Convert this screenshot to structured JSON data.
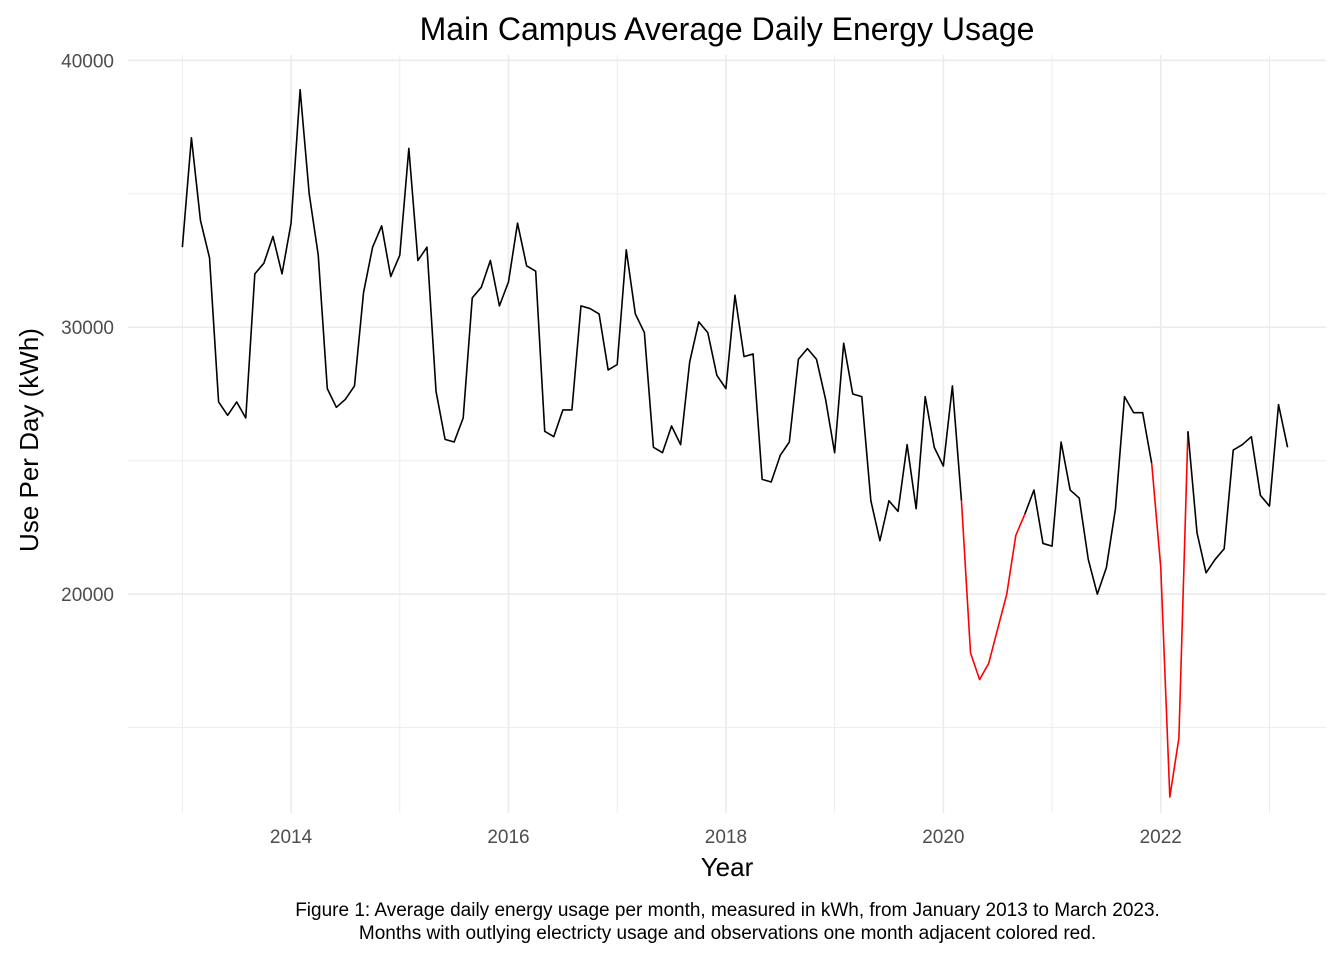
{
  "chart_data": {
    "type": "line",
    "title": "Main Campus Average Daily Energy Usage",
    "xlabel": "Year",
    "ylabel": "Use Per Day (kWh)",
    "xlim": [
      2012.5,
      2023.52
    ],
    "ylim": [
      11800,
      40200
    ],
    "x_ticks": [
      2014,
      2016,
      2018,
      2020,
      2022
    ],
    "y_ticks": [
      20000,
      30000,
      40000
    ],
    "grid": true,
    "legend": "none",
    "colors": {
      "normal": "#000000",
      "outlier": "#ff0000",
      "grid": "#ebebeb"
    },
    "x_start": "2013-01",
    "x_end": "2023-03",
    "series": [
      {
        "values": [
          33000,
          37100,
          34000,
          32600,
          27200,
          26700,
          27200,
          26600,
          32000,
          32400,
          33400,
          32000,
          33900,
          38900,
          35000,
          32700,
          27700,
          27000,
          27300,
          27800,
          31300,
          33000,
          33800,
          31900,
          32700,
          36700,
          32500,
          33000,
          27600,
          25800,
          25700,
          26600,
          31100,
          31500,
          32500,
          30800,
          31700,
          33900,
          32300,
          32100,
          26100,
          25900,
          26900,
          26900,
          30800,
          30700,
          30500,
          28400,
          28600,
          32900,
          30500,
          29800,
          25500,
          25300,
          26300,
          25600,
          28700,
          30200,
          29800,
          28200,
          27700,
          31200,
          28900,
          29000,
          24300,
          24200,
          25200,
          25700,
          28800,
          29200,
          28800,
          27300,
          25300,
          29400,
          27500,
          27400,
          23500,
          22000,
          23500,
          23100,
          25600,
          23200,
          27400,
          25500,
          24800,
          27800,
          23500,
          17800,
          16800,
          17400,
          18700,
          20000,
          22200,
          23000,
          23900,
          21900,
          21800,
          25700,
          23900,
          23600,
          21300,
          20000,
          21000,
          23200,
          27400,
          26800,
          26800,
          24900,
          21000,
          12400,
          14600,
          26100,
          22300,
          20800,
          21300,
          21700,
          25400,
          25600,
          25900,
          23700,
          23300,
          27100,
          25500
        ],
        "outlier_segments": [
          [
            86,
            93
          ],
          [
            107,
            111
          ]
        ]
      }
    ]
  },
  "caption": {
    "line1": "Figure 1: Average daily energy usage per month, measured in kWh, from January 2013 to March 2023.",
    "line2": "Months with outlying electricty usage and observations one month adjacent colored red."
  }
}
